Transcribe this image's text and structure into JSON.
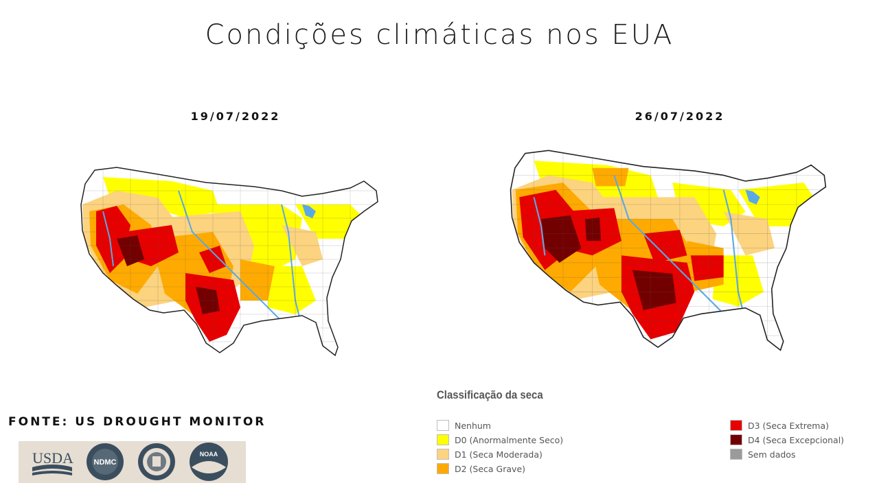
{
  "title": "Condições climáticas nos EUA",
  "maps": [
    {
      "date": "19/07/2022"
    },
    {
      "date": "26/07/2022"
    }
  ],
  "source": "FONTE: US DROUGHT MONITOR",
  "logos": [
    "USDA",
    "NDMC",
    "NOAA"
  ],
  "legend": {
    "title": "Classificação da seca",
    "items": [
      {
        "label": "Nenhum",
        "color": "#ffffff"
      },
      {
        "label": "D0 (Anormalmente Seco)",
        "color": "#ffff00"
      },
      {
        "label": "D1 (Seca Moderada)",
        "color": "#fcd37f"
      },
      {
        "label": "D2 (Seca Grave)",
        "color": "#ffaa00"
      },
      {
        "label": "D3 (Seca Extrema)",
        "color": "#e60000"
      },
      {
        "label": "D4 (Seca Excepcional)",
        "color": "#730000"
      },
      {
        "label": "Sem dados",
        "color": "#9b9b9b"
      }
    ]
  },
  "colors": {
    "water": "#5aa9e6",
    "border": "#222222"
  }
}
